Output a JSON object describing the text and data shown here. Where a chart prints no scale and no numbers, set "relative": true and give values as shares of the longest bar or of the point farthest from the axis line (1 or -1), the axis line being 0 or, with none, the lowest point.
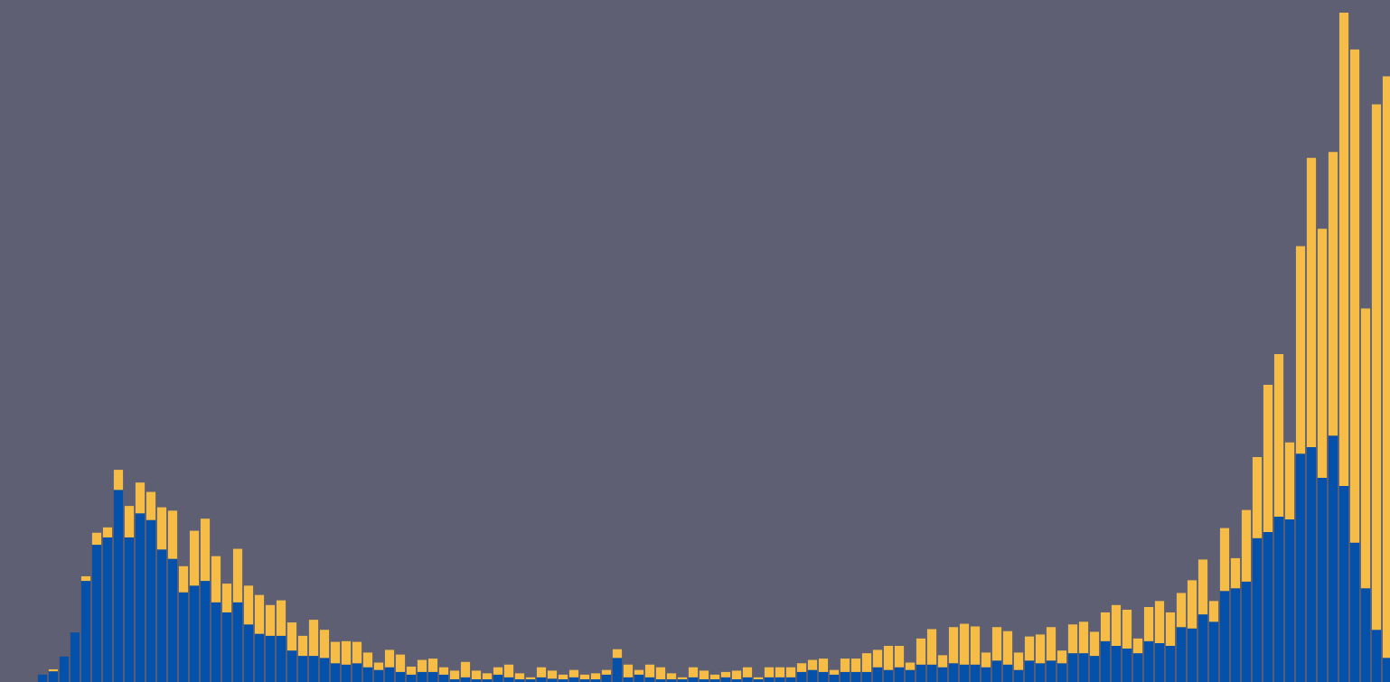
{
  "chart_data": {
    "type": "bar",
    "stacked": true,
    "relative": true,
    "categories": [
      null,
      null,
      null,
      null,
      null,
      null,
      null,
      null,
      null,
      null,
      null,
      null,
      null,
      null,
      null,
      null,
      null,
      null,
      null,
      null,
      null,
      null,
      null,
      null,
      null,
      null,
      null,
      null,
      null,
      null,
      null,
      null,
      null,
      null,
      null,
      null,
      null,
      null,
      null,
      null,
      null,
      null,
      null,
      null,
      null,
      null,
      null,
      null,
      null,
      null,
      null,
      null,
      null,
      null,
      null,
      null,
      null,
      null,
      null,
      null,
      null,
      null,
      null,
      null,
      null,
      null,
      null,
      null,
      null,
      null,
      null,
      null,
      null,
      null,
      null,
      null,
      null,
      null,
      null,
      null,
      null,
      null,
      null,
      null,
      null,
      null,
      null,
      null,
      null,
      null,
      null,
      null,
      null,
      null,
      null,
      null,
      null,
      null,
      null,
      null,
      null,
      null,
      null,
      null,
      null,
      null,
      null,
      null,
      null,
      null,
      null,
      null,
      null,
      null,
      null,
      null,
      null,
      null,
      null,
      null,
      null,
      null,
      null,
      null,
      null
    ],
    "series": [
      {
        "color": "#0550a8",
        "values": [
          0.011,
          0.016,
          0.038,
          0.074,
          0.151,
          0.205,
          0.216,
          0.287,
          0.216,
          0.252,
          0.242,
          0.198,
          0.184,
          0.134,
          0.144,
          0.151,
          0.119,
          0.104,
          0.119,
          0.086,
          0.072,
          0.069,
          0.069,
          0.047,
          0.039,
          0.039,
          0.036,
          0.028,
          0.026,
          0.028,
          0.022,
          0.018,
          0.022,
          0.015,
          0.011,
          0.015,
          0.015,
          0.011,
          0.004,
          0.007,
          0.004,
          0.004,
          0.011,
          0.007,
          0.004,
          0.004,
          0.007,
          0.005,
          0.004,
          0.007,
          0.004,
          0.004,
          0.011,
          0.036,
          0.007,
          0.011,
          0.007,
          0.004,
          0.004,
          0.004,
          0.007,
          0.004,
          0.004,
          0.007,
          0.004,
          0.007,
          0.004,
          0.007,
          0.007,
          0.007,
          0.015,
          0.018,
          0.015,
          0.011,
          0.015,
          0.015,
          0.015,
          0.022,
          0.018,
          0.022,
          0.018,
          0.026,
          0.026,
          0.022,
          0.028,
          0.026,
          0.026,
          0.022,
          0.032,
          0.026,
          0.018,
          0.032,
          0.028,
          0.032,
          0.028,
          0.043,
          0.043,
          0.039,
          0.061,
          0.054,
          0.05,
          0.043,
          0.061,
          0.058,
          0.054,
          0.082,
          0.08,
          0.101,
          0.09,
          0.136,
          0.14,
          0.15,
          0.215,
          0.224,
          0.247,
          0.243,
          0.341,
          0.351,
          0.305,
          0.368,
          0.293,
          0.208,
          0.14,
          0.078,
          0.036
        ]
      },
      {
        "color": "#f5bd47",
        "values": [
          0,
          0.003,
          0,
          0,
          0.007,
          0.018,
          0.015,
          0.03,
          0.047,
          0.046,
          0.042,
          0.063,
          0.072,
          0.039,
          0.082,
          0.093,
          0.069,
          0.043,
          0.08,
          0.058,
          0.058,
          0.046,
          0.053,
          0.042,
          0.03,
          0.054,
          0.042,
          0.032,
          0.035,
          0.032,
          0.022,
          0.011,
          0.026,
          0.026,
          0.012,
          0.018,
          0.02,
          0.011,
          0.013,
          0.023,
          0.013,
          0.009,
          0.011,
          0.019,
          0.009,
          0.003,
          0.015,
          0.012,
          0.007,
          0.011,
          0.007,
          0.009,
          0.007,
          0.013,
          0.019,
          0.007,
          0.019,
          0.018,
          0.009,
          0.003,
          0.015,
          0.013,
          0.007,
          0.008,
          0.013,
          0.015,
          0.003,
          0.015,
          0.015,
          0.015,
          0.013,
          0.015,
          0.02,
          0.007,
          0.02,
          0.02,
          0.028,
          0.026,
          0.036,
          0.032,
          0.011,
          0.039,
          0.053,
          0.018,
          0.054,
          0.061,
          0.057,
          0.022,
          0.05,
          0.05,
          0.026,
          0.036,
          0.043,
          0.05,
          0.019,
          0.043,
          0.047,
          0.036,
          0.043,
          0.061,
          0.058,
          0.022,
          0.051,
          0.063,
          0.05,
          0.051,
          0.072,
          0.082,
          0.031,
          0.094,
          0.045,
          0.107,
          0.121,
          0.22,
          0.243,
          0.115,
          0.31,
          0.432,
          0.372,
          0.424,
          0.707,
          0.737,
          0.418,
          0.785,
          0.869
        ]
      }
    ]
  }
}
